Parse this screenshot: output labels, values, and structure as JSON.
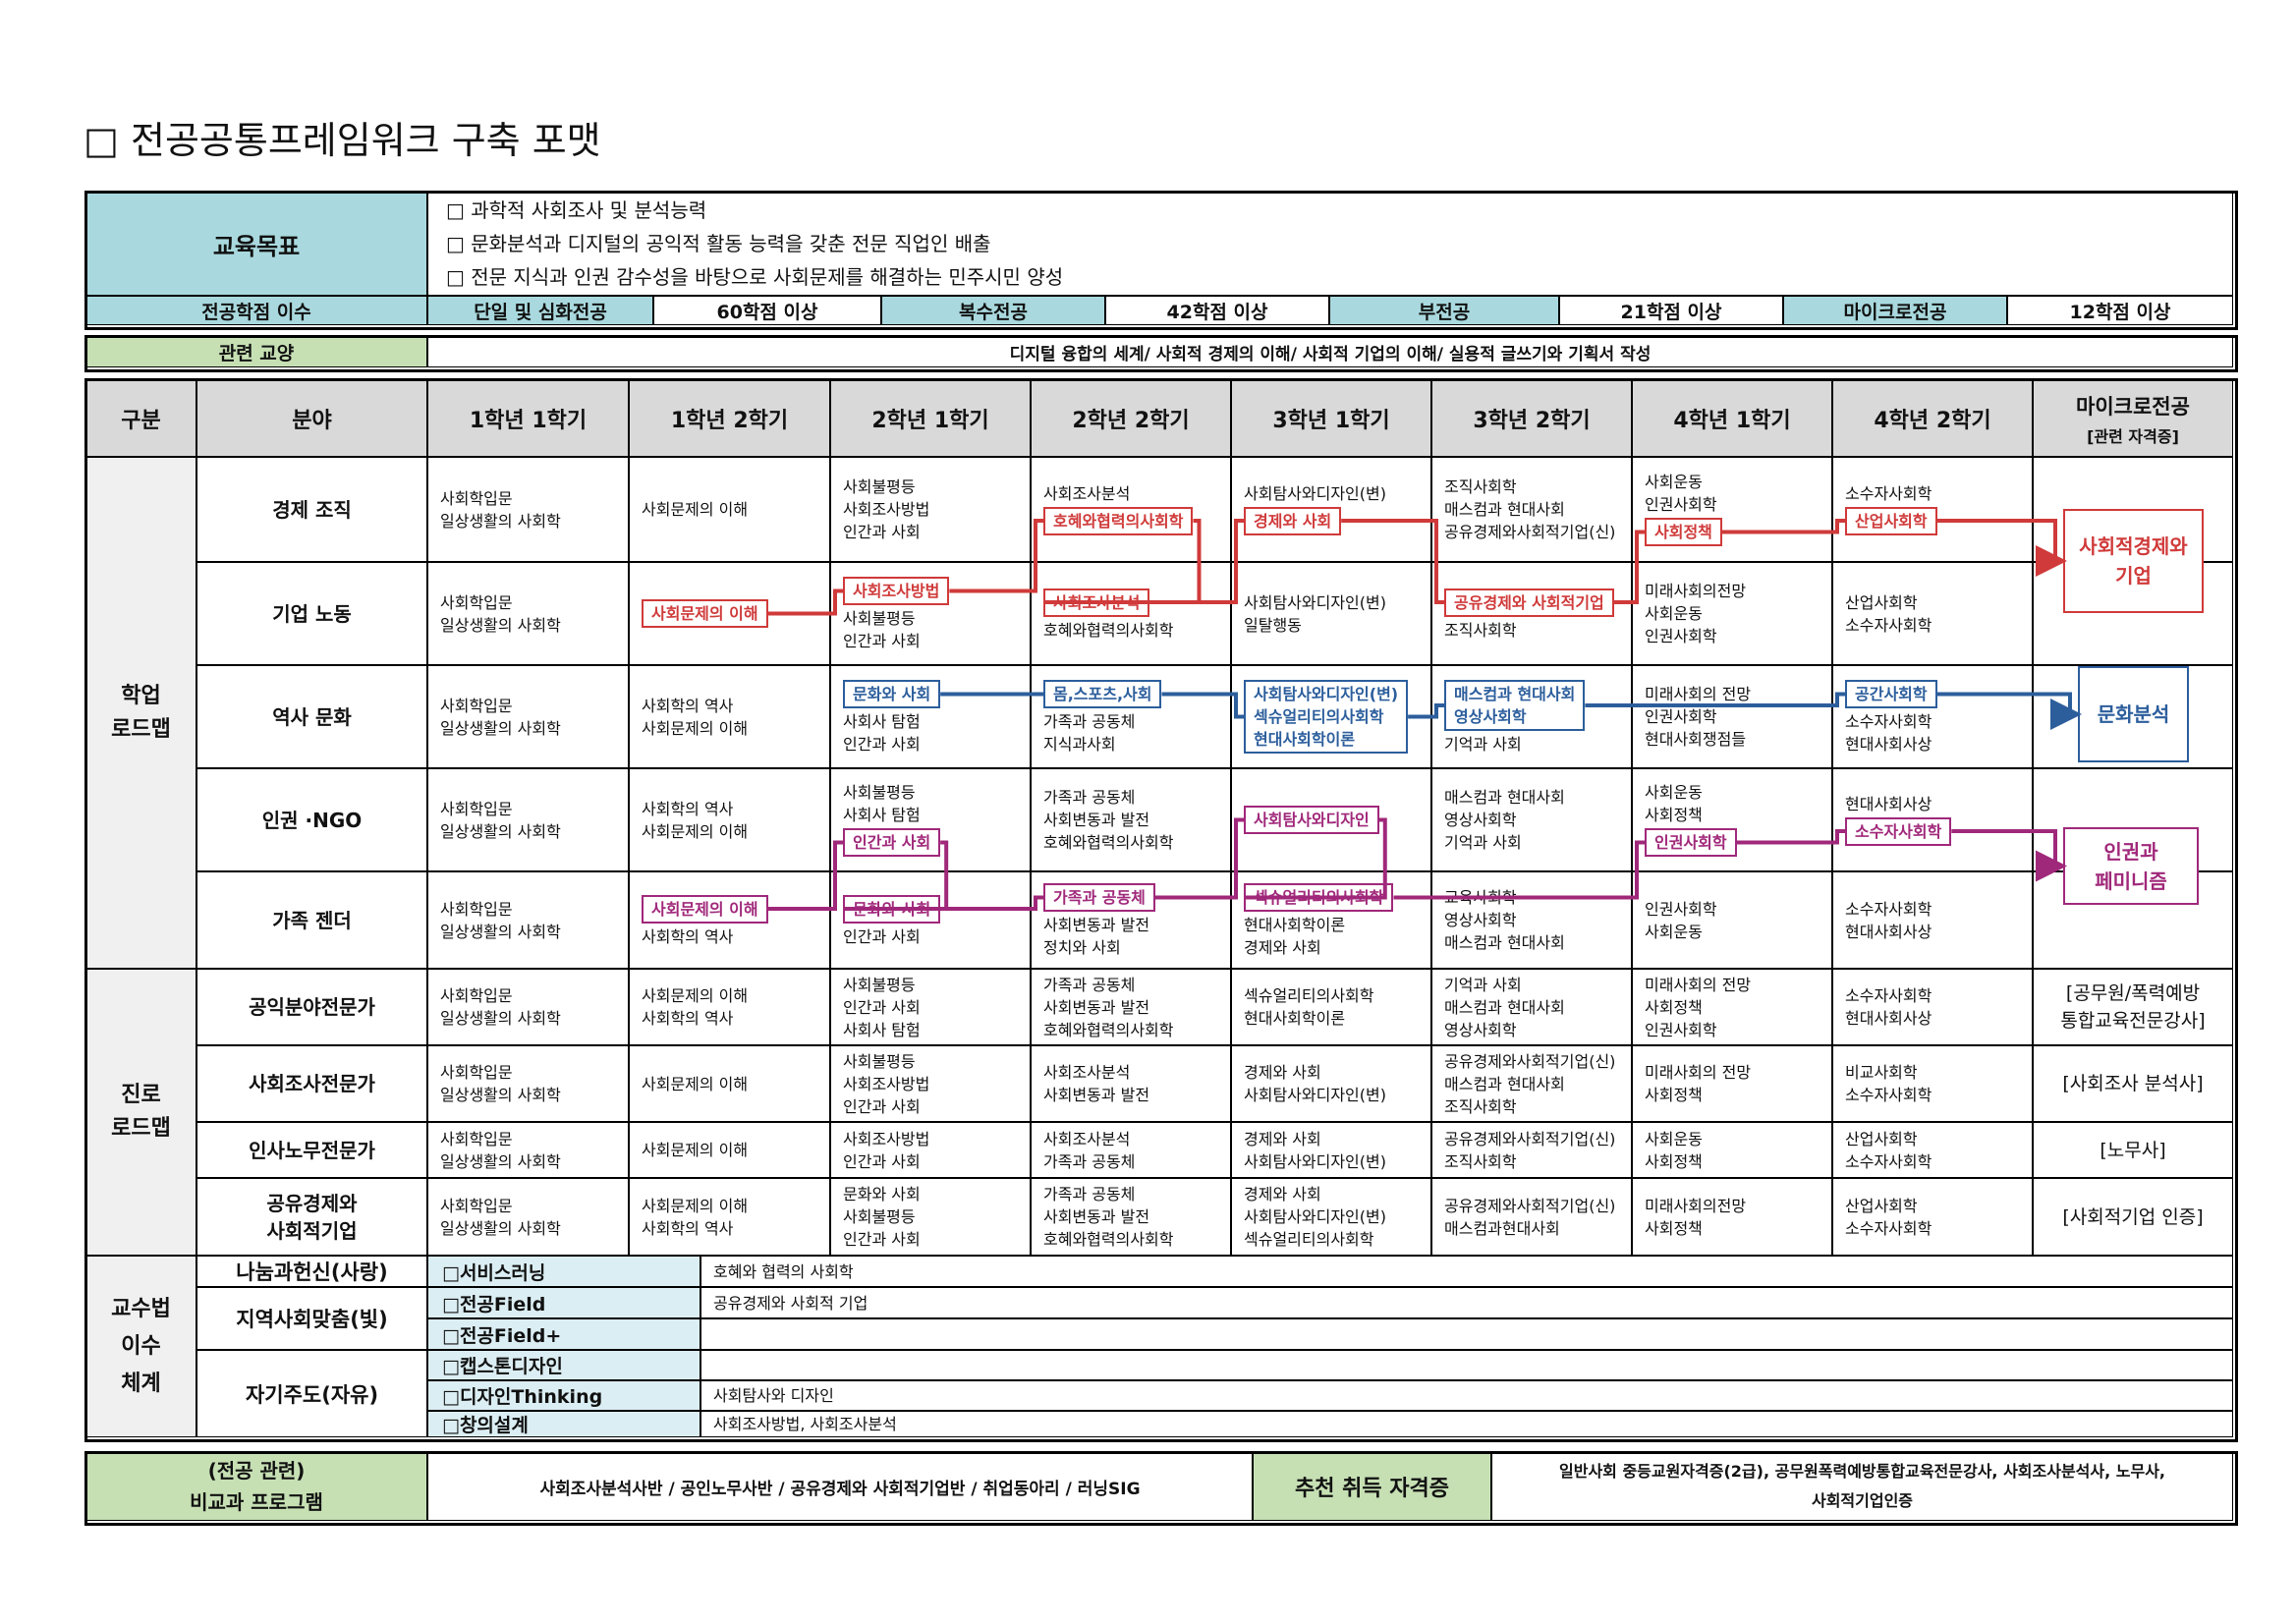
{
  "title": "□ 전공공통프레임워크 구축 포맷",
  "objectives": {
    "label": "교육목표",
    "items": [
      "□ 과학적 사회조사 및 분석능력",
      "□ 문화분석과 디지털의 공익적 활동 능력을 갖춘 전문 직업인 배출",
      "□ 전문 지식과 인권 감수성을 바탕으로 사회문제를 해결하는 민주시민 양성"
    ]
  },
  "credits": {
    "label": "전공학점 이수",
    "items": [
      {
        "type": "단일 및 심화전공",
        "req": "60학점 이상"
      },
      {
        "type": "복수전공",
        "req": "42학점 이상"
      },
      {
        "type": "부전공",
        "req": "21학점 이상"
      },
      {
        "type": "마이크로전공",
        "req": "12학점 이상"
      }
    ]
  },
  "related": {
    "label": "관련 교양",
    "text": "디지털 융합의 세계/ 사회적 경제의 이해/ 사회적 기업의 이해/ 실용적 글쓰기와 기획서 작성"
  },
  "header": {
    "group": "구분",
    "field": "분야",
    "semesters": [
      "1학년 1학기",
      "1학년 2학기",
      "2학년 1학기",
      "2학년 2학기",
      "3학년 1학기",
      "3학년 2학기",
      "4학년 1학기",
      "4학년 2학기"
    ],
    "final": "마이크로전공",
    "final_sub": "[관련 자격증]"
  },
  "academic": {
    "label": "학업 로드맵",
    "rows": [
      {
        "field": "경제 조직",
        "cells": [
          [
            "사회학입문",
            "일상생활의 사회학"
          ],
          [
            "사회문제의 이해"
          ],
          [
            "사회불평등",
            "사회조사방법",
            "인간과 사회"
          ],
          [
            "사회조사분석",
            {
              "text": "호혜와협력의사회학",
              "color": "#d03a3a"
            }
          ],
          [
            "사회탐사와디자인(변)",
            {
              "text": "경제와 사회",
              "color": "#d03a3a"
            }
          ],
          [
            "조직사회학",
            "매스컴과 현대사회",
            "공유경제와사회적기업(신)"
          ],
          [
            "사회운동",
            "인권사회학",
            {
              "text": "사회정책",
              "color": "#d03a3a"
            }
          ],
          [
            "소수자사회학",
            {
              "text": "산업사회학",
              "color": "#d03a3a"
            }
          ]
        ]
      },
      {
        "field": "기업 노동",
        "cells": [
          [
            "사회학입문",
            "일상생활의 사회학"
          ],
          [
            {
              "text": "사회문제의 이해",
              "color": "#d03a3a"
            }
          ],
          [
            {
              "text": "사회조사방법",
              "color": "#d03a3a"
            },
            "사회불평등",
            "인간과 사회"
          ],
          [
            {
              "text": "사회조사분석",
              "color": "#d03a3a"
            },
            "호혜와협력의사회학"
          ],
          [
            "사회탐사와디자인(변)",
            "일탈행동"
          ],
          [
            {
              "text": "공유경제와 사회적기업",
              "color": "#d03a3a"
            },
            "조직사회학"
          ],
          [
            "미래사회의전망",
            "사회운동",
            "인권사회학"
          ],
          [
            "산업사회학",
            "소수자사회학"
          ]
        ]
      },
      {
        "field": "역사 문화",
        "cells": [
          [
            "사회학입문",
            "일상생활의 사회학"
          ],
          [
            "사회학의 역사",
            "사회문제의 이해"
          ],
          [
            {
              "text": "문화와 사회",
              "color": "#2c5e9c"
            },
            "사회사 탐험",
            "인간과 사회"
          ],
          [
            {
              "text": "몸,스포츠,사회",
              "color": "#2c5e9c"
            },
            "가족과 공동체",
            "지식과사회"
          ],
          [
            {
              "text": "사회탐사와디자인(변)",
              "color": "#2c5e9c"
            },
            {
              "text": "섹슈얼리티의사회학",
              "color": "#2c5e9c"
            },
            {
              "text": "현대사회학이론",
              "color": "#2c5e9c"
            }
          ],
          [
            {
              "text": "매스컴과 현대사회",
              "color": "#2c5e9c"
            },
            {
              "text": "영상사회학",
              "color": "#2c5e9c"
            },
            "기억과 사회"
          ],
          [
            "미래사회의 전망",
            "인권사회학",
            "현대사회쟁점들"
          ],
          [
            {
              "text": "공간사회학",
              "color": "#2c5e9c"
            },
            "소수자사회학",
            "현대사회사상"
          ]
        ]
      },
      {
        "field": "인권 ·NGO",
        "cells": [
          [
            "사회학입문",
            "일상생활의 사회학"
          ],
          [
            "사회학의 역사",
            "사회문제의 이해"
          ],
          [
            "사회불평등",
            "사회사 탐험",
            {
              "text": "인간과 사회",
              "color": "#a0287a"
            }
          ],
          [
            "가족과 공동체",
            "사회변동과 발전",
            "호혜와협력의사회학"
          ],
          [
            {
              "text": "사회탐사와디자인",
              "color": "#a0287a"
            }
          ],
          [
            "매스컴과 현대사회",
            "영상사회학",
            "기억과 사회"
          ],
          [
            "사회운동",
            "사회정책",
            {
              "text": "인권사회학",
              "color": "#a0287a"
            }
          ],
          [
            "현대사회사상",
            {
              "text": "소수자사회학",
              "color": "#a0287a"
            }
          ]
        ]
      },
      {
        "field": "가족 젠더",
        "cells": [
          [
            "사회학입문",
            "일상생활의 사회학"
          ],
          [
            {
              "text": "사회문제의 이해",
              "color": "#a0287a"
            },
            "사회학의 역사"
          ],
          [
            {
              "text": "문화와 사회",
              "color": "#a0287a"
            },
            "인간과 사회"
          ],
          [
            {
              "text": "가족과 공동체",
              "color": "#a0287a"
            },
            "사회변동과 발전",
            "정치와 사회"
          ],
          [
            {
              "text": "섹슈얼리티의사회학",
              "color": "#a0287a"
            },
            "현대사회학이론",
            "경제와 사회"
          ],
          [
            "교육사회학",
            "영상사회학",
            "매스컴과 현대사회"
          ],
          [
            "인권사회학",
            "사회운동"
          ],
          [
            "소수자사회학",
            "현대사회사상"
          ]
        ]
      }
    ],
    "outcomes": [
      {
        "text": "사회적경제와 기업",
        "color": "#d03a3a"
      },
      {
        "text": "문화분석",
        "color": "#2c5e9c"
      },
      {
        "text": "인권과 페미니즘",
        "color": "#a0287a"
      }
    ]
  },
  "career": {
    "label": "진로 로드맵",
    "rows": [
      {
        "field": "공익분야전문가",
        "cells": [
          [
            "사회학입문",
            "일상생활의 사회학"
          ],
          [
            "사회문제의 이해",
            "사회학의 역사"
          ],
          [
            "사회불평등",
            "인간과 사회",
            "사회사 탐험"
          ],
          [
            "가족과 공동체",
            "사회변동과 발전",
            "호혜와협력의사회학"
          ],
          [
            "섹슈얼리티의사회학",
            "현대사회학이론"
          ],
          [
            "기억과 사회",
            "매스컴과 현대사회",
            "영상사회학"
          ],
          [
            "미래사회의 전망",
            "사회정책",
            "인권사회학"
          ],
          [
            "소수자사회학",
            "현대사회사상"
          ]
        ],
        "final": "[공무원/폭력예방 통합교육전문강사]"
      },
      {
        "field": "사회조사전문가",
        "cells": [
          [
            "사회학입문",
            "일상생활의 사회학"
          ],
          [
            "사회문제의 이해"
          ],
          [
            "사회불평등",
            "사회조사방법",
            "인간과 사회"
          ],
          [
            "사회조사분석",
            "사회변동과 발전"
          ],
          [
            "경제와 사회",
            "사회탐사와디자인(변)"
          ],
          [
            "공유경제와사회적기업(신)",
            "매스컴과 현대사회",
            "조직사회학"
          ],
          [
            "미래사회의 전망",
            "사회정책"
          ],
          [
            "비교사회학",
            "소수자사회학"
          ]
        ],
        "final": "[사회조사 분석사]"
      },
      {
        "field": "인사노무전문가",
        "cells": [
          [
            "사회학입문",
            "일상생활의 사회학"
          ],
          [
            "사회문제의 이해"
          ],
          [
            "사회조사방법",
            "인간과 사회"
          ],
          [
            "사회조사분석",
            "가족과 공동체"
          ],
          [
            "경제와 사회",
            "사회탐사와디자인(변)"
          ],
          [
            "공유경제와사회적기업(신)",
            "조직사회학"
          ],
          [
            "사회운동",
            "사회정책"
          ],
          [
            "산업사회학",
            "소수자사회학"
          ]
        ],
        "final": "[노무사]"
      },
      {
        "field": "공유경제와 사회적기업",
        "cells": [
          [
            "사회학입문",
            "일상생활의 사회학"
          ],
          [
            "사회문제의 이해",
            "사회학의 역사"
          ],
          [
            "문화와 사회",
            "사회불평등",
            "인간과 사회"
          ],
          [
            "가족과 공동체",
            "사회변동과 발전",
            "호혜와협력의사회학"
          ],
          [
            "경제와 사회",
            "사회탐사와디자인(변)",
            "섹슈얼리티의사회학"
          ],
          [
            "공유경제와사회적기업(신)",
            "매스컴과현대사회"
          ],
          [
            "미래사회의전망",
            "사회정책"
          ],
          [
            "산업사회학",
            "소수자사회학"
          ]
        ],
        "final": "[사회적기업 인증]"
      }
    ]
  },
  "teaching": {
    "label": "교수법 이수 체계",
    "groups": [
      {
        "name": "나눔과헌신(사랑)",
        "items": [
          {
            "item": "□서비스러닝",
            "course": "호혜와 협력의 사회학"
          }
        ]
      },
      {
        "name": "지역사회맞춤(빛)",
        "items": [
          {
            "item": "□전공Field",
            "course": "공유경제와 사회적 기업"
          },
          {
            "item": "□전공Field+",
            "course": null
          }
        ]
      },
      {
        "name": "자기주도(자유)",
        "items": [
          {
            "item": "□캡스톤디자인",
            "course": null
          },
          {
            "item": "□디자인Thinking",
            "course": "사회탐사와 디자인"
          },
          {
            "item": "□창의설계",
            "course": "사회조사방법, 사회조사분석"
          }
        ]
      }
    ]
  },
  "extra": {
    "label": [
      "(전공 관련)",
      "비교과 프로그램"
    ],
    "programs": "사회조사분석사반 / 공인노무사반 / 공유경제와 사회적기업반 / 취업동아리 / 러닝SIG",
    "cert_label": "추천 취득 자격증",
    "certs": "일반사회 중등교원자격증(2급), 공무원폭력예방통합교육전문강사, 사회조사분석사, 노무사, 사회적기업인증"
  }
}
